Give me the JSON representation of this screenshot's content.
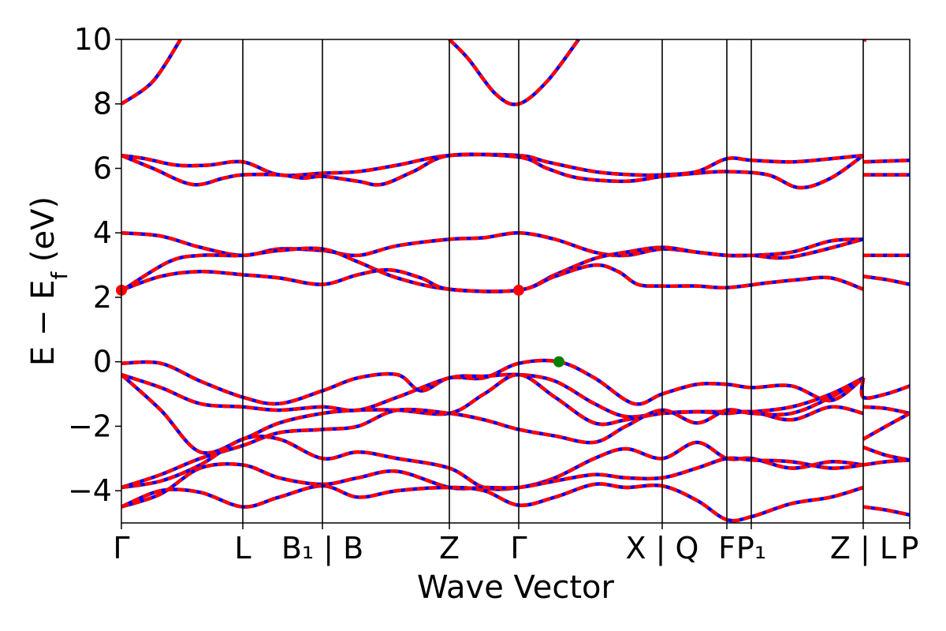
{
  "chart_data": {
    "type": "line",
    "xlabel": "Wave Vector",
    "ylabel": "E − E",
    "ylabel_subscript": "f",
    "ylabel_unit": " (eV)",
    "ylim": [
      -5,
      10
    ],
    "yticks": [
      -4,
      -2,
      0,
      2,
      4,
      6,
      8,
      10
    ],
    "ytick_labels": [
      "−4",
      "−2",
      "0",
      "2",
      "4",
      "6",
      "8",
      "10"
    ],
    "xlim": [
      0,
      1
    ],
    "kpoints": [
      {
        "label": "Γ",
        "x": 0.0
      },
      {
        "label": "L",
        "x": 0.154
      },
      {
        "label": "B₁ | B",
        "x": 0.255
      },
      {
        "label": "Z",
        "x": 0.416
      },
      {
        "label": "Γ",
        "x": 0.504
      },
      {
        "label": "X | Q",
        "x": 0.686
      },
      {
        "label": "F",
        "x": 0.768
      },
      {
        "label": "P₁",
        "x": 0.799
      },
      {
        "label": "Z | L",
        "x": 0.941
      },
      {
        "label": "P",
        "x": 1.0
      }
    ],
    "series_colors": {
      "overlay": "#ff0000",
      "base": "#0000ff",
      "vbm_marker": "#008000",
      "cbm_marker": "#ff0000"
    },
    "markers": [
      {
        "type": "vbm",
        "x": 0.555,
        "y": 0.0,
        "color": "#008000"
      },
      {
        "type": "cbm",
        "x": 0.0,
        "y": 2.22,
        "color": "#ff0000"
      },
      {
        "type": "cbm",
        "x": 0.504,
        "y": 2.22,
        "color": "#ff0000"
      }
    ],
    "bands": [
      [
        [
          0,
          8.0
        ],
        [
          0.04,
          8.7
        ],
        [
          0.075,
          10.0
        ]
      ],
      [
        [
          0.416,
          10.0
        ],
        [
          0.44,
          9.4
        ],
        [
          0.475,
          8.3
        ],
        [
          0.504,
          8.0
        ],
        [
          0.54,
          8.7
        ],
        [
          0.58,
          10.0
        ]
      ],
      [
        [
          0.941,
          10.0
        ],
        [
          0.945,
          9.98
        ]
      ],
      [
        [
          0,
          6.4
        ],
        [
          0.03,
          6.3
        ],
        [
          0.07,
          6.1
        ],
        [
          0.11,
          6.1
        ],
        [
          0.154,
          6.2
        ],
        [
          0.2,
          5.8
        ],
        [
          0.255,
          5.85
        ],
        [
          0.3,
          5.9
        ],
        [
          0.35,
          6.1
        ],
        [
          0.416,
          6.4
        ],
        [
          0.504,
          6.4
        ],
        [
          0.54,
          6.2
        ],
        [
          0.6,
          5.9
        ],
        [
          0.65,
          5.8
        ],
        [
          0.686,
          5.8
        ],
        [
          0.73,
          5.9
        ],
        [
          0.768,
          6.3
        ],
        [
          0.8,
          6.25
        ],
        [
          0.85,
          6.2
        ],
        [
          0.9,
          6.3
        ],
        [
          0.941,
          6.4
        ]
      ],
      [
        [
          0,
          6.4
        ],
        [
          0.04,
          6.0
        ],
        [
          0.09,
          5.5
        ],
        [
          0.13,
          5.7
        ],
        [
          0.154,
          5.8
        ],
        [
          0.2,
          5.8
        ],
        [
          0.23,
          5.7
        ],
        [
          0.255,
          5.75
        ],
        [
          0.3,
          5.6
        ],
        [
          0.33,
          5.5
        ],
        [
          0.37,
          5.9
        ],
        [
          0.416,
          6.4
        ],
        [
          0.504,
          6.35
        ],
        [
          0.54,
          6.0
        ],
        [
          0.58,
          5.7
        ],
        [
          0.64,
          5.6
        ],
        [
          0.686,
          5.75
        ],
        [
          0.73,
          5.85
        ],
        [
          0.768,
          5.9
        ],
        [
          0.82,
          5.8
        ],
        [
          0.86,
          5.4
        ],
        [
          0.9,
          5.7
        ],
        [
          0.941,
          6.4
        ]
      ],
      [
        [
          0.941,
          6.2
        ],
        [
          1.0,
          6.25
        ]
      ],
      [
        [
          0.941,
          5.8
        ],
        [
          1.0,
          5.8
        ]
      ],
      [
        [
          0,
          4.0
        ],
        [
          0.05,
          3.9
        ],
        [
          0.1,
          3.55
        ],
        [
          0.154,
          3.3
        ],
        [
          0.2,
          3.5
        ],
        [
          0.255,
          3.45
        ],
        [
          0.3,
          3.3
        ],
        [
          0.35,
          3.6
        ],
        [
          0.416,
          3.8
        ],
        [
          0.46,
          3.85
        ],
        [
          0.504,
          4.0
        ],
        [
          0.55,
          3.8
        ],
        [
          0.6,
          3.4
        ],
        [
          0.64,
          3.3
        ],
        [
          0.686,
          3.5
        ],
        [
          0.73,
          3.4
        ],
        [
          0.768,
          3.3
        ],
        [
          0.8,
          3.3
        ],
        [
          0.85,
          3.4
        ],
        [
          0.9,
          3.75
        ],
        [
          0.941,
          3.8
        ]
      ],
      [
        [
          0,
          2.2
        ],
        [
          0.06,
          3.1
        ],
        [
          0.1,
          3.3
        ],
        [
          0.154,
          3.3
        ],
        [
          0.2,
          3.45
        ],
        [
          0.255,
          3.5
        ],
        [
          0.3,
          3.1
        ],
        [
          0.35,
          2.6
        ],
        [
          0.416,
          2.25
        ],
        [
          0.504,
          2.22
        ],
        [
          0.55,
          2.7
        ],
        [
          0.6,
          3.2
        ],
        [
          0.64,
          3.4
        ],
        [
          0.686,
          3.55
        ],
        [
          0.73,
          3.4
        ],
        [
          0.768,
          3.3
        ],
        [
          0.8,
          3.3
        ],
        [
          0.85,
          3.25
        ],
        [
          0.941,
          3.8
        ]
      ],
      [
        [
          0,
          2.22
        ],
        [
          0.05,
          2.65
        ],
        [
          0.1,
          2.8
        ],
        [
          0.154,
          2.7
        ],
        [
          0.2,
          2.6
        ],
        [
          0.255,
          2.4
        ],
        [
          0.3,
          2.7
        ],
        [
          0.34,
          2.85
        ],
        [
          0.38,
          2.6
        ],
        [
          0.416,
          2.25
        ],
        [
          0.504,
          2.22
        ],
        [
          0.55,
          2.65
        ],
        [
          0.6,
          3.0
        ],
        [
          0.63,
          2.8
        ],
        [
          0.655,
          2.4
        ],
        [
          0.686,
          2.35
        ],
        [
          0.73,
          2.35
        ],
        [
          0.768,
          2.3
        ],
        [
          0.82,
          2.45
        ],
        [
          0.86,
          2.55
        ],
        [
          0.9,
          2.6
        ],
        [
          0.941,
          2.25
        ]
      ],
      [
        [
          0.941,
          3.3
        ],
        [
          1.0,
          3.3
        ]
      ],
      [
        [
          0.941,
          2.65
        ],
        [
          0.97,
          2.55
        ],
        [
          1.0,
          2.4
        ]
      ],
      [
        [
          0,
          -0.05
        ],
        [
          0.05,
          -0.05
        ],
        [
          0.1,
          -0.6
        ],
        [
          0.154,
          -1.1
        ],
        [
          0.2,
          -1.3
        ],
        [
          0.255,
          -0.9
        ],
        [
          0.3,
          -0.5
        ],
        [
          0.35,
          -0.4
        ],
        [
          0.38,
          -0.9
        ],
        [
          0.416,
          -0.5
        ],
        [
          0.46,
          -0.5
        ],
        [
          0.504,
          -0.05
        ],
        [
          0.555,
          0.0
        ],
        [
          0.6,
          -0.5
        ],
        [
          0.65,
          -1.3
        ],
        [
          0.686,
          -1.0
        ],
        [
          0.73,
          -0.7
        ],
        [
          0.768,
          -0.7
        ],
        [
          0.8,
          -0.8
        ],
        [
          0.85,
          -0.75
        ],
        [
          0.9,
          -1.2
        ],
        [
          0.941,
          -0.5
        ]
      ],
      [
        [
          0,
          -0.4
        ],
        [
          0.05,
          -0.8
        ],
        [
          0.1,
          -1.3
        ],
        [
          0.154,
          -1.4
        ],
        [
          0.2,
          -1.5
        ],
        [
          0.255,
          -1.4
        ],
        [
          0.3,
          -1.5
        ],
        [
          0.35,
          -1.1
        ],
        [
          0.416,
          -0.5
        ],
        [
          0.46,
          -0.45
        ],
        [
          0.504,
          -0.4
        ],
        [
          0.55,
          -0.6
        ],
        [
          0.6,
          -1.3
        ],
        [
          0.64,
          -1.7
        ],
        [
          0.686,
          -1.6
        ],
        [
          0.73,
          -1.55
        ],
        [
          0.768,
          -1.55
        ],
        [
          0.8,
          -1.55
        ],
        [
          0.85,
          -1.4
        ],
        [
          0.9,
          -1.0
        ],
        [
          0.941,
          -0.5
        ]
      ],
      [
        [
          0,
          -0.4
        ],
        [
          0.05,
          -1.5
        ],
        [
          0.1,
          -2.8
        ],
        [
          0.154,
          -2.4
        ],
        [
          0.2,
          -1.9
        ],
        [
          0.255,
          -1.6
        ],
        [
          0.3,
          -1.5
        ],
        [
          0.35,
          -1.5
        ],
        [
          0.416,
          -1.6
        ],
        [
          0.46,
          -1.0
        ],
        [
          0.504,
          -0.4
        ],
        [
          0.55,
          -1.1
        ],
        [
          0.6,
          -1.9
        ],
        [
          0.64,
          -1.8
        ],
        [
          0.686,
          -1.6
        ],
        [
          0.73,
          -1.55
        ],
        [
          0.768,
          -1.6
        ],
        [
          0.8,
          -1.55
        ],
        [
          0.85,
          -1.8
        ],
        [
          0.9,
          -1.4
        ],
        [
          0.941,
          -1.6
        ]
      ],
      [
        [
          0,
          -3.9
        ],
        [
          0.05,
          -3.5
        ],
        [
          0.1,
          -3.0
        ],
        [
          0.154,
          -2.6
        ],
        [
          0.2,
          -2.2
        ],
        [
          0.255,
          -2.1
        ],
        [
          0.3,
          -2.0
        ],
        [
          0.35,
          -1.5
        ],
        [
          0.416,
          -1.6
        ],
        [
          0.46,
          -1.8
        ],
        [
          0.504,
          -2.1
        ],
        [
          0.55,
          -2.3
        ],
        [
          0.6,
          -2.5
        ],
        [
          0.64,
          -2.0
        ],
        [
          0.686,
          -1.5
        ],
        [
          0.73,
          -1.9
        ],
        [
          0.768,
          -1.5
        ],
        [
          0.8,
          -1.6
        ],
        [
          0.85,
          -1.6
        ],
        [
          0.9,
          -1.1
        ],
        [
          0.941,
          -0.5
        ]
      ],
      [
        [
          0,
          -3.9
        ],
        [
          0.05,
          -3.7
        ],
        [
          0.1,
          -3.2
        ],
        [
          0.154,
          -2.4
        ],
        [
          0.2,
          -2.4
        ],
        [
          0.255,
          -3.0
        ],
        [
          0.3,
          -2.8
        ],
        [
          0.35,
          -3.0
        ],
        [
          0.416,
          -3.3
        ],
        [
          0.46,
          -3.9
        ],
        [
          0.504,
          -3.9
        ],
        [
          0.55,
          -3.6
        ],
        [
          0.6,
          -3.0
        ],
        [
          0.64,
          -2.7
        ],
        [
          0.686,
          -3.0
        ],
        [
          0.73,
          -2.5
        ],
        [
          0.768,
          -3.0
        ],
        [
          0.8,
          -3.0
        ],
        [
          0.85,
          -3.3
        ],
        [
          0.9,
          -3.1
        ],
        [
          0.941,
          -3.2
        ]
      ],
      [
        [
          0,
          -4.5
        ],
        [
          0.05,
          -4.1
        ],
        [
          0.1,
          -3.3
        ],
        [
          0.154,
          -3.2
        ],
        [
          0.2,
          -3.6
        ],
        [
          0.255,
          -3.8
        ],
        [
          0.3,
          -3.6
        ],
        [
          0.35,
          -3.4
        ],
        [
          0.416,
          -3.9
        ],
        [
          0.46,
          -3.9
        ],
        [
          0.504,
          -3.9
        ],
        [
          0.55,
          -3.7
        ],
        [
          0.6,
          -3.5
        ],
        [
          0.64,
          -3.6
        ],
        [
          0.686,
          -3.6
        ],
        [
          0.73,
          -3.3
        ],
        [
          0.768,
          -3.0
        ],
        [
          0.8,
          -3.05
        ],
        [
          0.85,
          -3.1
        ],
        [
          0.9,
          -3.3
        ],
        [
          0.941,
          -3.2
        ]
      ],
      [
        [
          0,
          -4.5
        ],
        [
          0.05,
          -4.0
        ],
        [
          0.1,
          -4.05
        ],
        [
          0.154,
          -4.5
        ],
        [
          0.2,
          -4.2
        ],
        [
          0.255,
          -3.85
        ],
        [
          0.3,
          -4.2
        ],
        [
          0.35,
          -4.0
        ],
        [
          0.416,
          -3.9
        ],
        [
          0.46,
          -4.0
        ],
        [
          0.504,
          -4.45
        ],
        [
          0.55,
          -4.2
        ],
        [
          0.6,
          -3.8
        ],
        [
          0.64,
          -3.9
        ],
        [
          0.686,
          -3.85
        ],
        [
          0.73,
          -4.3
        ],
        [
          0.768,
          -4.9
        ],
        [
          0.8,
          -4.8
        ],
        [
          0.85,
          -4.4
        ],
        [
          0.9,
          -4.2
        ],
        [
          0.941,
          -3.9
        ]
      ],
      [
        [
          0.941,
          -0.5
        ],
        [
          0.941,
          -1.1
        ],
        [
          0.97,
          -1.0
        ],
        [
          1.0,
          -0.75
        ]
      ],
      [
        [
          0.941,
          -1.4
        ],
        [
          0.97,
          -1.45
        ],
        [
          1.0,
          -1.6
        ]
      ],
      [
        [
          0.941,
          -2.4
        ],
        [
          0.97,
          -2.0
        ],
        [
          1.0,
          -1.6
        ]
      ],
      [
        [
          0.941,
          -2.65
        ],
        [
          0.97,
          -2.9
        ],
        [
          1.0,
          -3.05
        ]
      ],
      [
        [
          0.941,
          -3.2
        ],
        [
          0.97,
          -3.1
        ],
        [
          1.0,
          -3.05
        ]
      ],
      [
        [
          0.941,
          -4.5
        ],
        [
          0.97,
          -4.6
        ],
        [
          1.0,
          -4.75
        ]
      ]
    ]
  }
}
